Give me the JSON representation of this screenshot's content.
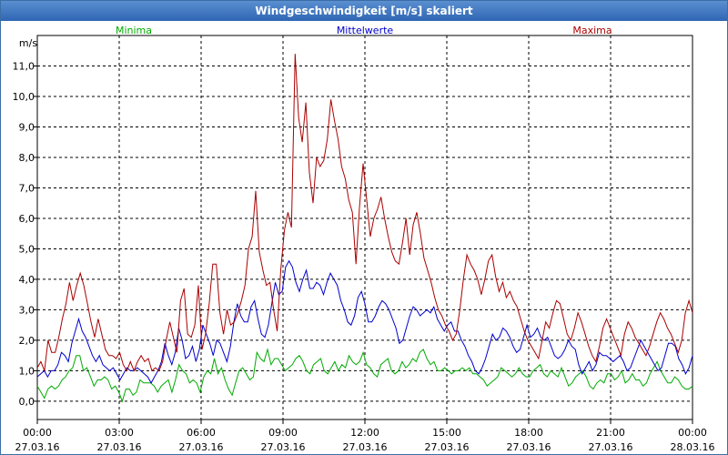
{
  "window": {
    "title": "Windgeschwindigkeit [m/s] skaliert"
  },
  "chart_data": {
    "type": "line",
    "title": "Windgeschwindigkeit [m/s] skaliert",
    "ylabel": "m/s",
    "ylim": [
      -0.6,
      12.0
    ],
    "y_ticks": [
      "0,0",
      "1,0",
      "2,0",
      "3,0",
      "4,0",
      "5,0",
      "6,0",
      "7,0",
      "8,0",
      "9,0",
      "10,0",
      "11,0"
    ],
    "x_ticks": [
      {
        "time": "00:00",
        "date": "27.03.16"
      },
      {
        "time": "03:00",
        "date": "27.03.16"
      },
      {
        "time": "06:00",
        "date": "27.03.16"
      },
      {
        "time": "09:00",
        "date": "27.03.16"
      },
      {
        "time": "12:00",
        "date": "27.03.16"
      },
      {
        "time": "15:00",
        "date": "27.03.16"
      },
      {
        "time": "18:00",
        "date": "27.03.16"
      },
      {
        "time": "21:00",
        "date": "27.03.16"
      },
      {
        "time": "00:00",
        "date": "28.03.16"
      }
    ],
    "grid": true,
    "legend_placement": "top",
    "series": [
      {
        "name": "Minima",
        "color": "#00aa00",
        "values": [
          0.5,
          0.3,
          0.1,
          0.4,
          0.5,
          0.4,
          0.5,
          0.7,
          0.8,
          1.0,
          1.1,
          1.5,
          1.5,
          1.0,
          1.1,
          0.8,
          0.5,
          0.7,
          0.7,
          0.8,
          0.7,
          0.4,
          0.5,
          0.3,
          0.0,
          0.4,
          0.4,
          0.2,
          0.3,
          0.7,
          0.6,
          0.6,
          0.6,
          0.5,
          0.3,
          0.5,
          0.6,
          0.7,
          0.3,
          0.7,
          1.2,
          1.0,
          0.9,
          0.6,
          0.7,
          0.6,
          0.3,
          0.8,
          1.0,
          0.9,
          1.4,
          0.9,
          1.1,
          0.7,
          0.4,
          0.2,
          0.6,
          1.0,
          1.1,
          0.9,
          0.7,
          0.8,
          1.6,
          1.4,
          1.3,
          1.7,
          1.2,
          1.4,
          1.4,
          1.2,
          1.0,
          1.1,
          1.2,
          1.4,
          1.5,
          1.3,
          1.0,
          0.9,
          1.2,
          1.3,
          1.4,
          1.0,
          0.9,
          1.1,
          1.3,
          1.0,
          1.2,
          1.1,
          1.5,
          1.3,
          1.2,
          1.3,
          1.6,
          1.2,
          1.1,
          0.9,
          0.8,
          1.2,
          1.3,
          1.4,
          1.0,
          0.9,
          1.0,
          1.3,
          1.1,
          1.2,
          1.4,
          1.3,
          1.6,
          1.7,
          1.4,
          1.2,
          1.3,
          1.0,
          1.0,
          1.1,
          1.0,
          0.9,
          1.0,
          1.0,
          1.1,
          1.0,
          1.1,
          0.9,
          0.9,
          0.8,
          0.7,
          0.5,
          0.6,
          0.7,
          0.8,
          1.1,
          1.0,
          0.9,
          0.8,
          0.9,
          1.1,
          0.9,
          0.8,
          0.8,
          1.0,
          1.1,
          1.2,
          0.9,
          0.8,
          1.0,
          0.9,
          0.8,
          1.1,
          0.8,
          0.5,
          0.6,
          0.8,
          0.9,
          1.0,
          0.8,
          0.5,
          0.4,
          0.6,
          0.7,
          0.6,
          0.9,
          0.9,
          0.7,
          0.8,
          1.0,
          0.6,
          0.7,
          0.9,
          0.7,
          0.7,
          0.5,
          0.6,
          0.9,
          1.1,
          1.3,
          1.0,
          0.8,
          0.6,
          0.6,
          0.8,
          0.7,
          0.5,
          0.4,
          0.4,
          0.5
        ]
      },
      {
        "name": "Mittelwerte",
        "color": "#0000cc",
        "values": [
          0.8,
          0.9,
          1.0,
          0.8,
          1.0,
          1.0,
          1.2,
          1.6,
          1.5,
          1.3,
          1.9,
          2.3,
          2.7,
          2.3,
          2.1,
          1.8,
          1.5,
          1.3,
          1.5,
          1.2,
          1.1,
          1.0,
          1.1,
          0.9,
          0.7,
          0.9,
          1.1,
          1.0,
          1.0,
          1.1,
          1.0,
          0.9,
          0.8,
          0.6,
          0.8,
          1.0,
          1.3,
          1.9,
          1.5,
          1.2,
          1.6,
          2.4,
          2.0,
          1.4,
          1.5,
          1.8,
          1.3,
          1.7,
          2.5,
          2.2,
          1.9,
          1.5,
          2.0,
          1.9,
          1.6,
          1.3,
          1.8,
          2.6,
          3.2,
          2.8,
          2.6,
          2.6,
          3.1,
          3.3,
          2.7,
          2.2,
          2.1,
          2.5,
          3.2,
          3.9,
          3.5,
          3.6,
          4.4,
          4.6,
          4.4,
          3.9,
          3.6,
          4.0,
          4.3,
          3.7,
          3.7,
          3.9,
          3.8,
          3.5,
          3.9,
          4.2,
          4.0,
          3.8,
          3.3,
          3.0,
          2.6,
          2.5,
          2.8,
          3.4,
          3.6,
          3.2,
          2.6,
          2.6,
          2.8,
          3.1,
          3.3,
          3.2,
          3.0,
          2.7,
          2.4,
          1.9,
          2.0,
          2.4,
          2.8,
          3.1,
          3.0,
          2.8,
          2.9,
          3.0,
          2.9,
          3.1,
          2.7,
          2.5,
          2.3,
          2.5,
          2.6,
          2.3,
          2.3,
          2.0,
          1.8,
          1.5,
          1.3,
          1.0,
          0.9,
          1.1,
          1.4,
          1.8,
          2.2,
          2.0,
          2.1,
          2.4,
          2.3,
          2.1,
          1.8,
          1.6,
          1.7,
          2.1,
          2.5,
          2.1,
          2.2,
          2.4,
          2.1,
          2.0,
          2.1,
          1.8,
          1.5,
          1.4,
          1.5,
          1.7,
          2.0,
          1.8,
          1.7,
          1.2,
          0.9,
          1.1,
          1.3,
          1.0,
          1.2,
          1.6,
          1.5,
          1.5,
          1.4,
          1.3,
          1.4,
          1.5,
          1.3,
          1.0,
          1.1,
          1.4,
          1.7,
          2.0,
          1.8,
          1.6,
          1.4,
          1.2,
          1.0,
          1.1,
          1.5,
          1.9,
          1.9,
          1.8,
          1.4,
          1.2,
          0.9,
          1.1,
          1.5
        ]
      },
      {
        "name": "Maxima",
        "color": "#aa0000",
        "values": [
          1.1,
          1.3,
          1.0,
          2.0,
          1.6,
          1.6,
          2.1,
          2.7,
          3.2,
          3.9,
          3.3,
          3.8,
          4.2,
          3.8,
          3.2,
          2.6,
          2.1,
          2.7,
          2.2,
          1.7,
          1.5,
          1.5,
          1.4,
          1.6,
          1.2,
          1.0,
          1.3,
          1.0,
          1.3,
          1.5,
          1.3,
          1.4,
          1.0,
          1.1,
          1.0,
          1.3,
          2.0,
          2.6,
          2.1,
          1.6,
          3.3,
          3.7,
          2.2,
          2.1,
          2.5,
          3.8,
          1.7,
          2.2,
          3.2,
          4.5,
          4.5,
          2.9,
          2.2,
          3.0,
          2.5,
          2.6,
          2.9,
          3.3,
          3.8,
          5.0,
          5.4,
          6.9,
          4.9,
          4.3,
          3.8,
          3.9,
          3.0,
          2.3,
          4.3,
          5.6,
          6.2,
          5.7,
          11.4,
          9.3,
          8.5,
          9.8,
          7.5,
          6.5,
          8.0,
          7.7,
          7.9,
          8.6,
          9.9,
          9.2,
          8.6,
          7.7,
          7.3,
          6.6,
          6.2,
          4.5,
          6.4,
          7.8,
          6.6,
          5.4,
          6.0,
          6.3,
          6.7,
          6.0,
          5.4,
          4.9,
          4.6,
          4.5,
          5.2,
          6.0,
          4.8,
          5.8,
          6.2,
          5.5,
          4.7,
          4.3,
          3.9,
          3.4,
          3.0,
          2.8,
          2.5,
          2.3,
          2.0,
          2.2,
          3.0,
          4.0,
          4.8,
          4.5,
          4.3,
          4.0,
          3.5,
          4.0,
          4.6,
          4.8,
          4.1,
          3.6,
          3.9,
          3.4,
          3.6,
          3.3,
          3.1,
          2.7,
          2.3,
          2.0,
          1.8,
          1.6,
          1.4,
          2.0,
          2.6,
          2.4,
          2.9,
          3.3,
          3.2,
          2.7,
          2.2,
          2.0,
          2.4,
          2.9,
          2.6,
          2.2,
          1.8,
          1.5,
          1.3,
          1.8,
          2.4,
          2.7,
          2.4,
          2.1,
          1.8,
          1.5,
          2.2,
          2.6,
          2.4,
          2.1,
          1.9,
          1.7,
          1.5,
          1.8,
          2.2,
          2.6,
          2.9,
          2.7,
          2.4,
          2.2,
          1.9,
          1.6,
          2.0,
          2.9,
          3.3,
          2.9
        ]
      }
    ]
  }
}
